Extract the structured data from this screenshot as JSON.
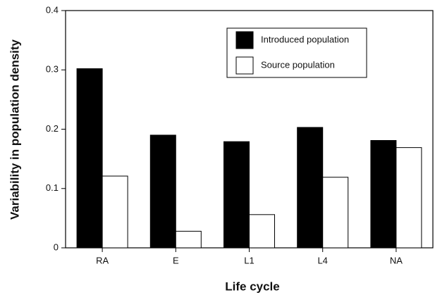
{
  "chart_data": {
    "type": "bar",
    "xlabel": "Life cycle",
    "ylabel": "Variability in population density",
    "categories": [
      "RA",
      "E",
      "L1",
      "L4",
      "NA"
    ],
    "series": [
      {
        "name": "Introduced population",
        "color": "#000000",
        "values": [
          0.302,
          0.19,
          0.179,
          0.203,
          0.181
        ]
      },
      {
        "name": "Source population",
        "color": "#ffffff",
        "values": [
          0.121,
          0.028,
          0.056,
          0.119,
          0.169
        ]
      }
    ],
    "ylim": [
      0,
      0.4
    ],
    "yticks": [
      0,
      0.1,
      0.2,
      0.3,
      0.4
    ],
    "grid": false,
    "legend": "upper right"
  }
}
